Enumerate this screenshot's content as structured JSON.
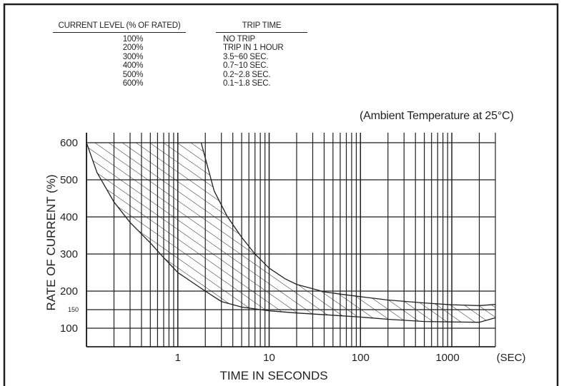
{
  "trip_table": {
    "header_current": "CURRENT LEVEL (% OF RATED)",
    "header_trip": "TRIP TIME",
    "rows": [
      {
        "current": "100%",
        "trip": "NO TRIP"
      },
      {
        "current": "200%",
        "trip": "TRIP IN 1 HOUR"
      },
      {
        "current": "300%",
        "trip": "3.5~60 SEC."
      },
      {
        "current": "400%",
        "trip": "0.7~10 SEC."
      },
      {
        "current": "500%",
        "trip": "0.2~2.8 SEC."
      },
      {
        "current": "600%",
        "trip": "0.1~1.8 SEC."
      }
    ]
  },
  "ambient_note": "(Ambient Temperature at 25°C)",
  "chart_data": {
    "type": "area",
    "xlabel": "TIME IN SECONDS",
    "ylabel": "RATE OF CURRENT  (%)",
    "x_unit_label": "(SEC)",
    "x_scale": "log",
    "xlim": [
      0.1,
      3000
    ],
    "ylim": [
      50,
      600
    ],
    "x_ticks": [
      {
        "value": 1,
        "label": "1"
      },
      {
        "value": 10,
        "label": "10"
      },
      {
        "value": 100,
        "label": "100"
      },
      {
        "value": 1000,
        "label": "1000"
      }
    ],
    "y_ticks": [
      {
        "value": 600,
        "label": "600"
      },
      {
        "value": 500,
        "label": "500"
      },
      {
        "value": 400,
        "label": "400"
      },
      {
        "value": 300,
        "label": "300"
      },
      {
        "value": 200,
        "label": "200"
      },
      {
        "value": 150,
        "label": "150"
      },
      {
        "value": 100,
        "label": "100"
      }
    ],
    "grid": true,
    "fill_pattern": "diagonal-hatch",
    "band": {
      "lower": [
        {
          "x": 0.1,
          "y": 600
        },
        {
          "x": 0.13,
          "y": 520
        },
        {
          "x": 0.2,
          "y": 440
        },
        {
          "x": 0.3,
          "y": 385
        },
        {
          "x": 0.5,
          "y": 330
        },
        {
          "x": 0.7,
          "y": 290
        },
        {
          "x": 1,
          "y": 250
        },
        {
          "x": 2,
          "y": 200
        },
        {
          "x": 3,
          "y": 172
        },
        {
          "x": 5,
          "y": 157
        },
        {
          "x": 10,
          "y": 147
        },
        {
          "x": 20,
          "y": 141
        },
        {
          "x": 50,
          "y": 135
        },
        {
          "x": 100,
          "y": 130
        },
        {
          "x": 200,
          "y": 124
        },
        {
          "x": 500,
          "y": 118
        },
        {
          "x": 1000,
          "y": 117
        },
        {
          "x": 2000,
          "y": 116
        },
        {
          "x": 3000,
          "y": 128
        }
      ],
      "upper": [
        {
          "x": 1.8,
          "y": 600
        },
        {
          "x": 2.5,
          "y": 470
        },
        {
          "x": 3.5,
          "y": 400
        },
        {
          "x": 5,
          "y": 345
        },
        {
          "x": 7,
          "y": 300
        },
        {
          "x": 10,
          "y": 262
        },
        {
          "x": 15,
          "y": 233
        },
        {
          "x": 20,
          "y": 218
        },
        {
          "x": 40,
          "y": 198
        },
        {
          "x": 60,
          "y": 192
        },
        {
          "x": 100,
          "y": 185
        },
        {
          "x": 200,
          "y": 176
        },
        {
          "x": 500,
          "y": 168
        },
        {
          "x": 1000,
          "y": 163
        },
        {
          "x": 2000,
          "y": 161
        },
        {
          "x": 3000,
          "y": 164
        }
      ]
    }
  }
}
